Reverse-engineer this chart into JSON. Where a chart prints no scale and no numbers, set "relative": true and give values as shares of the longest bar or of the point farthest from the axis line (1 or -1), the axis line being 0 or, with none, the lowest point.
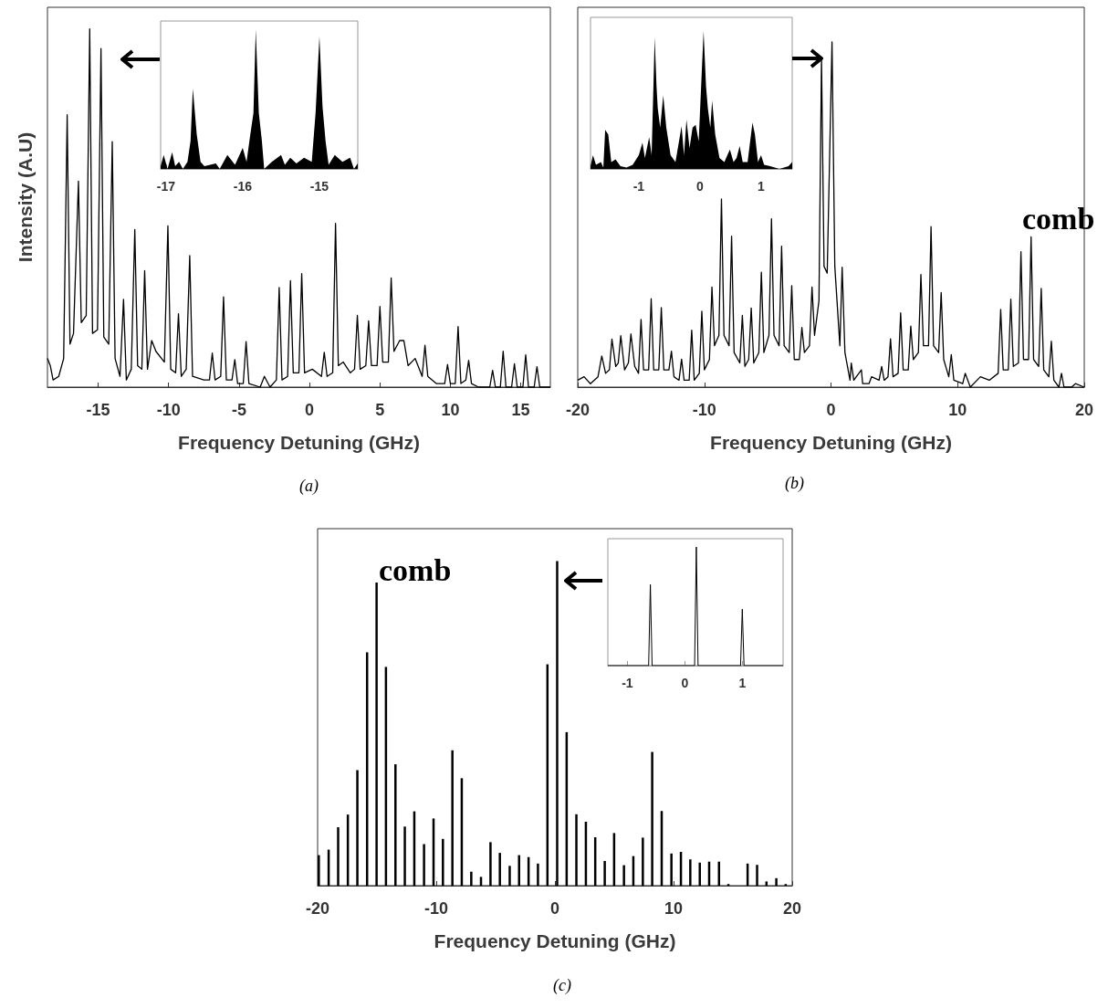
{
  "chart_data": [
    {
      "type": "line",
      "relative": true,
      "xlabel": "Frequency Detuning (GHz)",
      "ylabel": "Intensity (A.U)",
      "xlim": [
        -18.6,
        17.1
      ],
      "xticks": [
        -15,
        -10,
        -5,
        0,
        5,
        10,
        15
      ],
      "tick_labels": "x",
      "annotations": [
        "(a)"
      ],
      "series": [
        {
          "color": "#000000",
          "x": [
            -18.6,
            -18.4,
            -18.2,
            -17.8,
            -17.45,
            -17.2,
            -17.0,
            -16.75,
            -16.4,
            -16.2,
            -15.85,
            -15.6,
            -15.4,
            -15.05,
            -14.8,
            -14.6,
            -14.25,
            -14.0,
            -13.8,
            -13.45,
            -13.2,
            -13.0,
            -12.65,
            -12.4,
            -12.2,
            -11.9,
            -11.7,
            -11.5,
            -11.2,
            -10.9,
            -10.3,
            -10.05,
            -9.85,
            -9.5,
            -9.3,
            -9.1,
            -8.75,
            -8.5,
            -8.3,
            -7.5,
            -7.1,
            -6.9,
            -6.7,
            -6.3,
            -6.1,
            -5.9,
            -5.5,
            -5.3,
            -5.1,
            -4.7,
            -4.5,
            -4.3,
            -3.5,
            -3.2,
            -2.8,
            -2.35,
            -2.15,
            -1.95,
            -1.55,
            -1.35,
            -1.15,
            -0.75,
            -0.55,
            -0.35,
            0.2,
            0.85,
            1.05,
            1.25,
            1.65,
            1.85,
            2.05,
            2.4,
            2.9,
            3.2,
            3.4,
            3.6,
            4.0,
            4.2,
            4.4,
            4.8,
            5.0,
            5.2,
            5.6,
            5.8,
            6.0,
            6.4,
            6.7,
            7.0,
            7.5,
            8.0,
            8.2,
            8.4,
            9.0,
            9.6,
            9.8,
            10.0,
            10.35,
            10.55,
            10.75,
            11.1,
            11.3,
            11.5,
            12.0,
            12.8,
            13.0,
            13.2,
            13.55,
            13.75,
            13.95,
            14.35,
            14.55,
            14.75,
            15.15,
            15.35,
            15.55,
            15.95,
            16.15,
            16.35,
            17.1
          ],
          "values": [
            0.08,
            0.06,
            0.02,
            0.03,
            0.08,
            0.76,
            0.12,
            0.15,
            0.575,
            0.18,
            0.2,
            1.0,
            0.15,
            0.16,
            0.945,
            0.14,
            0.12,
            0.685,
            0.08,
            0.03,
            0.245,
            0.02,
            0.05,
            0.44,
            0.06,
            0.05,
            0.325,
            0.05,
            0.13,
            0.1,
            0.07,
            0.45,
            0.05,
            0.04,
            0.205,
            0.03,
            0.05,
            0.367,
            0.03,
            0.02,
            0.02,
            0.095,
            0.02,
            0.03,
            0.252,
            0.02,
            0.02,
            0.077,
            0.01,
            0.01,
            0.127,
            0.01,
            0.0,
            0.03,
            0.0,
            0.02,
            0.278,
            0.02,
            0.03,
            0.297,
            0.04,
            0.04,
            0.317,
            0.04,
            0.05,
            0.03,
            0.097,
            0.03,
            0.04,
            0.457,
            0.06,
            0.07,
            0.04,
            0.05,
            0.2,
            0.05,
            0.06,
            0.185,
            0.06,
            0.06,
            0.225,
            0.07,
            0.07,
            0.305,
            0.1,
            0.13,
            0.13,
            0.06,
            0.08,
            0.03,
            0.117,
            0.03,
            0.01,
            0.01,
            0.063,
            0.01,
            0.01,
            0.169,
            0.01,
            0.02,
            0.075,
            0.01,
            0.0,
            0.0,
            0.047,
            0.0,
            0.0,
            0.1,
            0.0,
            0.0,
            0.065,
            0.0,
            0.0,
            0.09,
            0.0,
            0.0,
            0.057,
            0.0,
            0.0
          ]
        }
      ]
    },
    {
      "type": "area",
      "relative": true,
      "xlim": [
        -17.07,
        -14.5
      ],
      "xticks": [
        -17,
        -16,
        -15
      ],
      "tick_labels": "x",
      "series": [
        {
          "color": "#000000",
          "x": [
            -17.07,
            -17.03,
            -16.98,
            -16.92,
            -16.88,
            -16.83,
            -16.78,
            -16.72,
            -16.68,
            -16.65,
            -16.6,
            -16.55,
            -16.5,
            -16.35,
            -16.3,
            -16.2,
            -16.1,
            -16.0,
            -15.95,
            -15.9,
            -15.86,
            -15.83,
            -15.79,
            -15.75,
            -15.72,
            -15.62,
            -15.5,
            -15.45,
            -15.38,
            -15.3,
            -15.2,
            -15.1,
            -15.05,
            -15.0,
            -14.96,
            -14.92,
            -14.88,
            -14.8,
            -14.7,
            -14.6,
            -14.55,
            -14.5
          ],
          "values": [
            0.02,
            0.1,
            0.0,
            0.12,
            0.02,
            0.05,
            0.0,
            0.05,
            0.2,
            0.575,
            0.25,
            0.05,
            0.02,
            0.04,
            0.0,
            0.1,
            0.03,
            0.15,
            0.05,
            0.25,
            0.4,
            1.0,
            0.4,
            0.2,
            0.0,
            0.05,
            0.1,
            0.03,
            0.08,
            0.04,
            0.08,
            0.05,
            0.4,
            0.948,
            0.45,
            0.2,
            0.03,
            0.1,
            0.05,
            0.08,
            0.0,
            0.04
          ]
        }
      ]
    },
    {
      "type": "line",
      "relative": true,
      "xlabel": "Frequency Detuning (GHz)",
      "xlim": [
        -20,
        20
      ],
      "xticks": [
        -20,
        -10,
        0,
        10,
        20
      ],
      "tick_labels": "x",
      "annotations": [
        "comb",
        "(b)"
      ],
      "series": [
        {
          "color": "#000000",
          "x": [
            -20,
            -19.5,
            -19,
            -18.4,
            -18.1,
            -17.8,
            -17.5,
            -17.3,
            -17.0,
            -16.8,
            -16.6,
            -16.3,
            -16.0,
            -15.8,
            -15.5,
            -15.2,
            -15.0,
            -14.8,
            -14.4,
            -14.2,
            -14.0,
            -13.6,
            -13.4,
            -13.2,
            -12.8,
            -12.6,
            -12.4,
            -12.0,
            -11.8,
            -11.6,
            -11.2,
            -11.0,
            -10.8,
            -10.4,
            -10.2,
            -10.0,
            -9.6,
            -9.4,
            -9.2,
            -8.85,
            -8.65,
            -8.45,
            -8.05,
            -7.85,
            -7.65,
            -7.2,
            -7.0,
            -6.8,
            -6.5,
            -6.3,
            -6.1,
            -5.7,
            -5.5,
            -5.3,
            -4.9,
            -4.7,
            -4.5,
            -4.1,
            -3.9,
            -3.7,
            -3.3,
            -3.1,
            -2.9,
            -2.5,
            -2.3,
            -2.1,
            -1.7,
            -1.5,
            -1.3,
            -0.95,
            -0.75,
            -0.55,
            -0.3,
            0.08,
            0.3,
            0.7,
            0.88,
            1.1,
            1.5,
            1.6,
            1.8,
            2.4,
            2.5,
            3.0,
            3.2,
            3.8,
            4.0,
            4.2,
            4.5,
            4.7,
            4.9,
            5.3,
            5.5,
            5.7,
            6.1,
            6.3,
            6.5,
            6.9,
            7.1,
            7.3,
            7.7,
            7.9,
            8.1,
            8.5,
            8.7,
            8.9,
            9.3,
            9.5,
            9.7,
            10.4,
            10.6,
            11.0,
            11.8,
            12.5,
            13.2,
            13.4,
            13.6,
            14.0,
            14.2,
            14.4,
            14.8,
            15.0,
            15.2,
            15.6,
            15.8,
            16.0,
            16.4,
            16.6,
            16.8,
            17.2,
            17.4,
            17.6,
            18.0,
            18.2,
            18.4,
            19.0,
            19.3,
            20
          ],
          "values": [
            0.02,
            0.03,
            0.01,
            0.03,
            0.09,
            0.04,
            0.05,
            0.139,
            0.06,
            0.07,
            0.149,
            0.05,
            0.07,
            0.154,
            0.06,
            0.04,
            0.196,
            0.05,
            0.05,
            0.256,
            0.05,
            0.05,
            0.23,
            0.05,
            0.05,
            0.104,
            0.03,
            0.02,
            0.081,
            0.02,
            0.02,
            0.165,
            0.02,
            0.04,
            0.22,
            0.05,
            0.08,
            0.29,
            0.12,
            0.15,
            0.545,
            0.15,
            0.12,
            0.4375,
            0.1,
            0.07,
            0.208,
            0.06,
            0.08,
            0.229,
            0.07,
            0.1,
            0.333,
            0.1,
            0.15,
            0.4875,
            0.15,
            0.12,
            0.408,
            0.12,
            0.1,
            0.294,
            0.08,
            0.08,
            0.173,
            0.1,
            0.12,
            0.29,
            0.15,
            0.25,
            0.951,
            0.35,
            0.33,
            1.0,
            0.35,
            0.12,
            0.347,
            0.1,
            0.02,
            0.07,
            0.02,
            0.05,
            0.01,
            0.01,
            0.03,
            0.02,
            0.06,
            0.02,
            0.03,
            0.14,
            0.03,
            0.04,
            0.215,
            0.05,
            0.05,
            0.177,
            0.08,
            0.1,
            0.326,
            0.12,
            0.12,
            0.465,
            0.12,
            0.1,
            0.274,
            0.08,
            0.03,
            0.094,
            0.02,
            0.01,
            0.04,
            0.0,
            0.03,
            0.02,
            0.04,
            0.225,
            0.05,
            0.05,
            0.255,
            0.06,
            0.07,
            0.392,
            0.08,
            0.08,
            0.435,
            0.08,
            0.06,
            0.286,
            0.05,
            0.03,
            0.133,
            0.02,
            0.0,
            0.04,
            0.0,
            0.0,
            0.01,
            0.0
          ]
        }
      ]
    },
    {
      "type": "area",
      "relative": true,
      "xlim": [
        -1.79,
        1.51
      ],
      "xticks": [
        -1,
        0,
        1
      ],
      "tick_labels": "x",
      "series": [
        {
          "color": "#000000",
          "x": [
            -1.79,
            -1.75,
            -1.7,
            -1.62,
            -1.58,
            -1.55,
            -1.5,
            -1.45,
            -1.38,
            -1.3,
            -1.2,
            -1.1,
            -1.0,
            -0.94,
            -0.9,
            -0.83,
            -0.79,
            -0.74,
            -0.71,
            -0.69,
            -0.65,
            -0.6,
            -0.55,
            -0.48,
            -0.4,
            -0.3,
            -0.26,
            -0.22,
            -0.17,
            -0.12,
            -0.07,
            -0.02,
            0.06,
            0.1,
            0.13,
            0.17,
            0.2,
            0.25,
            0.32,
            0.4,
            0.49,
            0.55,
            0.6,
            0.65,
            0.7,
            0.78,
            0.86,
            0.9,
            0.95,
            1.0,
            1.05,
            1.15,
            1.3,
            1.45,
            1.51
          ],
          "values": [
            0.02,
            0.1,
            0.03,
            0.05,
            0.01,
            0.284,
            0.25,
            0.05,
            0.07,
            0.02,
            0.01,
            0.03,
            0.1,
            0.19,
            0.08,
            0.23,
            0.1,
            0.955,
            0.6,
            0.44,
            0.3,
            0.534,
            0.3,
            0.1,
            0.05,
            0.31,
            0.1,
            0.358,
            0.15,
            0.3,
            0.32,
            0.2,
            1.0,
            0.6,
            0.44,
            0.3,
            0.495,
            0.25,
            0.08,
            0.05,
            0.14,
            0.05,
            0.08,
            0.166,
            0.05,
            0.05,
            0.337,
            0.25,
            0.05,
            0.1,
            0.03,
            0.02,
            0.0,
            0.02,
            0.05
          ]
        }
      ]
    },
    {
      "type": "bar",
      "relative": true,
      "xlabel": "Frequency Detuning (GHz)",
      "xlim": [
        -20,
        20
      ],
      "xticks": [
        -20,
        -10,
        0,
        10,
        20
      ],
      "tick_labels": "x",
      "annotations": [
        "comb",
        "(c)"
      ],
      "series": [
        {
          "color": "#000000",
          "x": [
            -19.9,
            -19.07,
            -18.27,
            -17.45,
            -16.65,
            -15.83,
            -15.03,
            -14.24,
            -13.44,
            -12.65,
            -11.85,
            -11.03,
            -10.23,
            -9.44,
            -8.64,
            -7.85,
            -7.05,
            -6.23,
            -5.43,
            -4.64,
            -3.81,
            -3.02,
            -2.22,
            -1.43,
            -0.63,
            0.19,
            0.99,
            1.81,
            2.61,
            3.4,
            4.2,
            4.99,
            5.82,
            6.61,
            7.41,
            8.2,
            9.0,
            9.82,
            10.62,
            11.41,
            12.21,
            13.0,
            13.83,
            14.62,
            16.24,
            17.04,
            17.83,
            18.66,
            19.45
          ],
          "values": [
            0.094,
            0.111,
            0.18,
            0.219,
            0.356,
            0.719,
            0.934,
            0.674,
            0.374,
            0.182,
            0.229,
            0.128,
            0.207,
            0.144,
            0.417,
            0.331,
            0.043,
            0.027,
            0.134,
            0.101,
            0.061,
            0.094,
            0.088,
            0.068,
            0.682,
            1.0,
            0.473,
            0.22,
            0.197,
            0.149,
            0.076,
            0.162,
            0.063,
            0.091,
            0.148,
            0.412,
            0.23,
            0.099,
            0.104,
            0.081,
            0.071,
            0.074,
            0.074,
            0.005,
            0.068,
            0.064,
            0.013,
            0.023,
            0.005
          ]
        }
      ]
    },
    {
      "type": "line",
      "relative": true,
      "xlim": [
        -1.34,
        1.71
      ],
      "xticks": [
        -1,
        0,
        1
      ],
      "tick_labels": "x",
      "series": [
        {
          "color": "#000000",
          "x": [
            -1.34,
            -0.63,
            -0.6,
            -0.57,
            0.17,
            0.2,
            0.23,
            0.97,
            1.0,
            1.03,
            1.71
          ],
          "values": [
            0,
            0,
            0.683,
            0,
            0,
            1.0,
            0,
            0,
            0.476,
            0,
            0
          ]
        }
      ]
    }
  ]
}
